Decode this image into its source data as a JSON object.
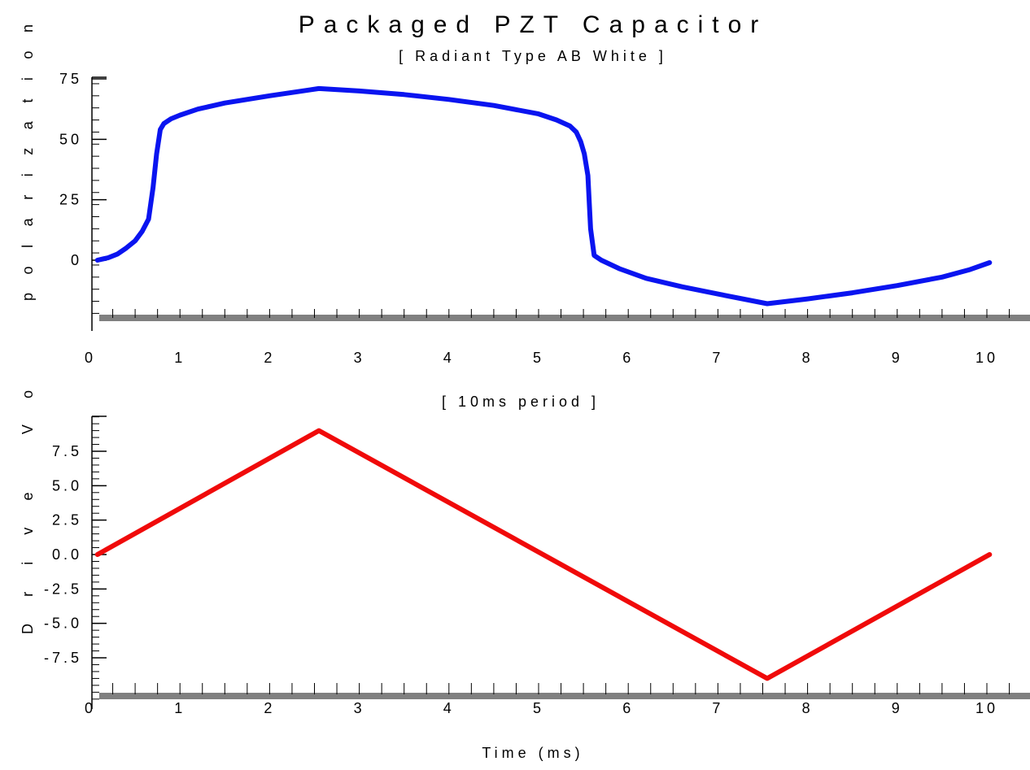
{
  "chart_data": [
    {
      "type": "line",
      "title": "Packaged PZT Capacitor",
      "subtitle": "[ Radiant Type AB White ]",
      "ylabel": "polarization",
      "xlabel": "[ 10ms period ]",
      "xlim": [
        0,
        10.5
      ],
      "ylim": [
        -22,
        75
      ],
      "x_ticks": [
        "0",
        "1",
        "2",
        "3",
        "4",
        "5",
        "6",
        "7",
        "8",
        "9",
        "10"
      ],
      "y_ticks": [
        "0",
        "25",
        "50",
        "75"
      ],
      "y_tick_values": [
        0,
        25,
        50,
        75
      ],
      "grid": false,
      "legend": "none",
      "colors": {
        "line": "#0a14f0",
        "axis": "#000000",
        "baseline": "#808080"
      },
      "series": [
        {
          "x": [
            0.08,
            0.2,
            0.3,
            0.4,
            0.5,
            0.58,
            0.65,
            0.7,
            0.74,
            0.78,
            0.82,
            0.9,
            1.0,
            1.2,
            1.5,
            2.0,
            2.55,
            3.0,
            3.5,
            4.0,
            4.5,
            5.0,
            5.2,
            5.35,
            5.42,
            5.47,
            5.51,
            5.55,
            5.58,
            5.62,
            5.7,
            5.9,
            6.2,
            6.6,
            7.0,
            7.55,
            8.0,
            8.5,
            9.0,
            9.5,
            9.8,
            10.03
          ],
          "y": [
            0,
            1,
            2.5,
            5,
            8,
            12,
            17,
            30,
            44,
            54,
            56.5,
            58.5,
            60,
            62.5,
            65,
            68,
            71,
            70,
            68.5,
            66.5,
            64,
            60.5,
            58,
            55.5,
            53,
            49,
            44,
            35,
            13,
            2,
            0,
            -3.5,
            -7.5,
            -11,
            -14,
            -18,
            -16,
            -13.5,
            -10.5,
            -7,
            -4,
            -1
          ]
        }
      ]
    },
    {
      "type": "line",
      "ylabel": "Drive Vo",
      "xlabel": "Time (ms)",
      "xlim": [
        0,
        10.5
      ],
      "ylim": [
        -11,
        10
      ],
      "x_ticks": [
        "0",
        "1",
        "2",
        "3",
        "4",
        "5",
        "6",
        "7",
        "8",
        "9",
        "10"
      ],
      "y_ticks": [
        "-7.5",
        "-5.0",
        "-2.5",
        "0.0",
        "2.5",
        "5.0",
        "7.5"
      ],
      "y_tick_values": [
        -7.5,
        -5,
        -2.5,
        0,
        2.5,
        5,
        7.5
      ],
      "grid": false,
      "legend": "none",
      "colors": {
        "line": "#f00a0a",
        "axis": "#000000",
        "baseline": "#808080"
      },
      "series": [
        {
          "x": [
            0.08,
            2.55,
            7.55,
            10.03
          ],
          "y": [
            0,
            9,
            -9,
            0
          ]
        }
      ]
    }
  ]
}
